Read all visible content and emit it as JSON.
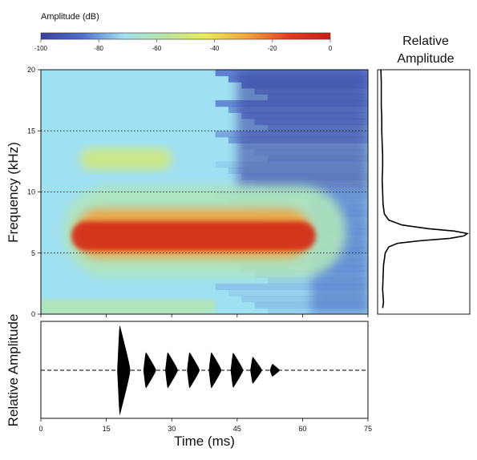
{
  "colors": {
    "colormap": [
      "#3b3f9e",
      "#4f6fc8",
      "#9fe0f2",
      "#b8e6a0",
      "#e8ea5c",
      "#f3a43b",
      "#e23b21",
      "#c91f15"
    ],
    "waveform": "#000000",
    "frame": "#111111"
  },
  "chart_data": [
    {
      "type": "heatmap",
      "id": "spectrogram",
      "xlabel": "Time (ms)",
      "ylabel": "Frequency (kHz)",
      "xlim": [
        0,
        75
      ],
      "ylim": [
        0,
        20
      ],
      "y_ticks": [
        0,
        5,
        10,
        15,
        20
      ],
      "x_ticks": [
        0,
        15,
        30,
        45,
        60,
        75
      ],
      "grid_lines_y": [
        5,
        10,
        15
      ],
      "grid": "dotted horizontal",
      "colorbar": {
        "title": "Amplitude (dB)",
        "ticks": [
          -100,
          -80,
          -60,
          -40,
          -20,
          0
        ],
        "range": [
          -100,
          0
        ]
      },
      "regions": [
        {
          "t": [
            7,
            63
          ],
          "f": [
            5.2,
            7.6
          ],
          "db": -5
        },
        {
          "t": [
            8,
            62
          ],
          "f": [
            4.6,
            8.6
          ],
          "db": -28
        },
        {
          "t": [
            9,
            30
          ],
          "f": [
            11.8,
            13.6
          ],
          "db": -50
        },
        {
          "t": [
            5,
            70
          ],
          "f": [
            3,
            10.5
          ],
          "db": -62
        }
      ]
    },
    {
      "type": "line",
      "id": "frequency-profile",
      "title_lines": [
        "Relative",
        "Amplitude"
      ],
      "x": "Relative Amplitude",
      "y": "Frequency (kHz)",
      "ylim": [
        0,
        20
      ],
      "peak_frequency": 6.6,
      "points": [
        [
          0.5,
          0.03
        ],
        [
          1,
          0.04
        ],
        [
          2,
          0.03
        ],
        [
          3,
          0.035
        ],
        [
          4,
          0.04
        ],
        [
          5,
          0.06
        ],
        [
          5.5,
          0.1
        ],
        [
          5.8,
          0.2
        ],
        [
          6.0,
          0.45
        ],
        [
          6.2,
          0.8
        ],
        [
          6.4,
          0.96
        ],
        [
          6.6,
          1.0
        ],
        [
          6.8,
          0.85
        ],
        [
          7.0,
          0.55
        ],
        [
          7.3,
          0.25
        ],
        [
          7.7,
          0.1
        ],
        [
          8.2,
          0.05
        ],
        [
          9,
          0.035
        ],
        [
          10,
          0.03
        ],
        [
          11,
          0.025
        ],
        [
          12,
          0.03
        ],
        [
          13,
          0.03
        ],
        [
          14,
          0.025
        ],
        [
          15,
          0.02
        ],
        [
          16,
          0.02
        ],
        [
          17,
          0.015
        ],
        [
          18,
          0.015
        ],
        [
          19,
          0.015
        ],
        [
          20,
          0.01
        ]
      ]
    },
    {
      "type": "line",
      "id": "waveform",
      "xlabel": "Time (ms)",
      "ylabel": "Relative Amplitude",
      "xlim": [
        0,
        75
      ],
      "x_ticks": [
        0,
        15,
        30,
        45,
        60,
        75
      ],
      "pulses": [
        {
          "t": 18,
          "amp": 1.0,
          "width": 2.5
        },
        {
          "t": 24,
          "amp": 0.4,
          "width": 2.4
        },
        {
          "t": 29,
          "amp": 0.4,
          "width": 2.4
        },
        {
          "t": 34,
          "amp": 0.4,
          "width": 2.4
        },
        {
          "t": 39,
          "amp": 0.4,
          "width": 2.4
        },
        {
          "t": 44,
          "amp": 0.39,
          "width": 2.4
        },
        {
          "t": 48.5,
          "amp": 0.3,
          "width": 2.2
        },
        {
          "t": 53,
          "amp": 0.14,
          "width": 1.8
        }
      ]
    }
  ]
}
